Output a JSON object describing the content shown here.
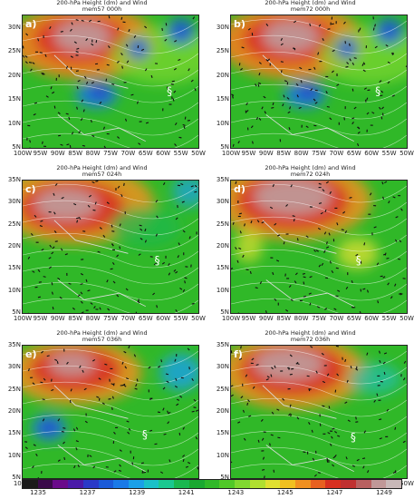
{
  "panels": [
    {
      "id": "a",
      "label": "a)",
      "title1": "200-hPa Height (dm) and Wind",
      "title2": "mem57 000h",
      "variant": 0
    },
    {
      "id": "b",
      "label": "b)",
      "title1": "200-hPa Height (dm) and Wind",
      "title2": "mem72 000h",
      "variant": 0
    },
    {
      "id": "c",
      "label": "c)",
      "title1": "200-hPa Height (dm) and Wind",
      "title2": "mem57 024h",
      "variant": 1
    },
    {
      "id": "d",
      "label": "d)",
      "title1": "200-hPa Height (dm) and Wind",
      "title2": "mem72 024h",
      "variant": 2
    },
    {
      "id": "e",
      "label": "e)",
      "title1": "200-hPa Height (dm) and Wind",
      "title2": "mem57 036h",
      "variant": 3
    },
    {
      "id": "f",
      "label": "f)",
      "title1": "200-hPa Height (dm) and Wind",
      "title2": "mem72 036h",
      "variant": 4
    }
  ],
  "lat_labels": [
    "35N",
    "30N",
    "25N",
    "20N",
    "15N",
    "10N",
    "5N"
  ],
  "lat_labels_top_row": [
    "30N",
    "25N",
    "20N",
    "15N",
    "10N",
    "5N"
  ],
  "lon_labels": [
    "100W",
    "95W",
    "90W",
    "85W",
    "80W",
    "75W",
    "70W",
    "65W",
    "60W",
    "55W",
    "50W"
  ],
  "colorbar": {
    "colors": [
      "#1a1a1a",
      "#3a0a4a",
      "#6a0a8a",
      "#4a1aa8",
      "#2a3ac8",
      "#1a5ad8",
      "#1a7ae8",
      "#1aa0e8",
      "#1ac0c8",
      "#1ac890",
      "#1ab850",
      "#1aa830",
      "#30b828",
      "#50c828",
      "#80d830",
      "#b0e030",
      "#e0e030",
      "#f0c020",
      "#f09020",
      "#e86020",
      "#d83020",
      "#c03030",
      "#b86060",
      "#c09898",
      "#c8b8b8"
    ],
    "tick_labels": [
      "1235",
      "1237",
      "1239",
      "1241",
      "1243",
      "1245",
      "1247",
      "1249"
    ]
  }
}
